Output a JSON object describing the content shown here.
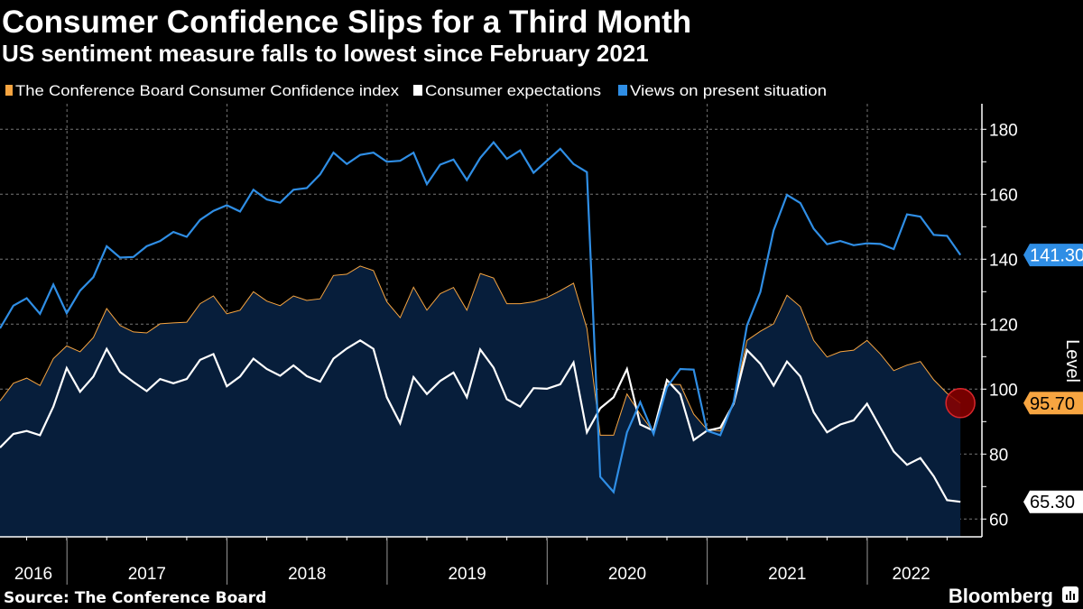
{
  "chart_data": {
    "type": "line",
    "title": "Consumer Confidence Slips for a Third Month",
    "subtitle": "US sentiment measure falls to lowest since February 2021",
    "ylabel": "Level",
    "xlabel": "",
    "ylim": [
      55,
      187
    ],
    "yticks": [
      60,
      80,
      100,
      120,
      140,
      160,
      180
    ],
    "grid": true,
    "legend_position": "top-left",
    "x_start": "2016-07",
    "x_end": "2022-07",
    "x_frequency": "monthly",
    "year_labels": [
      "2016",
      "2017",
      "2018",
      "2019",
      "2020",
      "2021",
      "2022"
    ],
    "series": [
      {
        "name": "The Conference Board Consumer Confidence index",
        "color": "#f7a541",
        "style": "area",
        "last_value_label": "95.70",
        "values": [
          96.4,
          101.8,
          103.4,
          101.1,
          109.4,
          113.3,
          111.5,
          115.9,
          124.8,
          119.6,
          117.6,
          117.3,
          120.1,
          120.4,
          120.6,
          126.3,
          128.7,
          123.2,
          124.3,
          130.0,
          127.1,
          125.7,
          128.7,
          127.3,
          127.8,
          135.0,
          135.4,
          137.9,
          136.5,
          126.9,
          122.0,
          131.4,
          124.3,
          129.4,
          131.3,
          124.3,
          135.6,
          134.2,
          126.3,
          126.3,
          126.9,
          128.2,
          130.3,
          132.6,
          118.7,
          85.8,
          85.8,
          98.5,
          92.3,
          86.7,
          101.5,
          101.4,
          92.3,
          87.6,
          87.1,
          95.5,
          115.0,
          117.8,
          120.1,
          128.9,
          125.4,
          115.0,
          109.9,
          111.5,
          112.0,
          115.0,
          110.8,
          105.7,
          107.4,
          108.5,
          102.9,
          98.7,
          95.7
        ]
      },
      {
        "name": "Consumer expectations",
        "color": "#ffffff",
        "style": "line",
        "last_value_label": "65.30",
        "values": [
          82.0,
          86.2,
          87.1,
          85.8,
          94.6,
          106.5,
          99.2,
          103.9,
          112.4,
          105.3,
          102.2,
          99.4,
          103.1,
          101.8,
          103.1,
          109.0,
          110.8,
          100.9,
          103.9,
          109.4,
          106.2,
          104.1,
          107.3,
          104.0,
          102.3,
          109.4,
          112.5,
          115.0,
          112.4,
          97.5,
          89.5,
          103.7,
          98.5,
          102.5,
          105.1,
          97.5,
          112.2,
          106.6,
          96.9,
          94.6,
          100.3,
          100.1,
          101.5,
          108.2,
          86.7,
          94.1,
          97.5,
          106.2,
          89.1,
          87.2,
          102.8,
          98.4,
          84.3,
          87.2,
          88.1,
          95.5,
          112.0,
          107.8,
          101.1,
          108.5,
          103.9,
          92.9,
          86.7,
          89.1,
          90.4,
          95.5,
          88.1,
          80.8,
          76.7,
          78.8,
          73.2,
          65.8,
          65.3
        ]
      },
      {
        "name": "Views on present situation",
        "color": "#2f8ee5",
        "style": "line",
        "last_value_label": "141.30",
        "values": [
          118.7,
          125.7,
          128.0,
          123.2,
          132.2,
          123.4,
          130.3,
          134.5,
          144.0,
          140.5,
          140.7,
          144.0,
          145.6,
          148.4,
          146.9,
          152.1,
          154.9,
          156.6,
          154.7,
          161.4,
          158.4,
          157.4,
          161.4,
          161.9,
          166.1,
          172.8,
          169.3,
          172.1,
          172.8,
          170.0,
          170.3,
          172.8,
          163.1,
          169.1,
          170.7,
          164.4,
          171.2,
          176.0,
          170.9,
          173.5,
          166.6,
          170.3,
          174.0,
          169.3,
          166.8,
          73.0,
          68.3,
          86.7,
          96.0,
          86.2,
          100.6,
          106.2,
          106.0,
          87.2,
          85.8,
          96.0,
          119.6,
          129.9,
          148.9,
          159.8,
          157.3,
          149.4,
          144.6,
          145.6,
          144.3,
          144.9,
          144.7,
          143.1,
          153.8,
          153.1,
          147.5,
          147.2,
          141.3
        ]
      }
    ],
    "area_fill_color": "#071e3b",
    "highlight_marker_color": "#8b0000"
  },
  "footer": {
    "source": "Source: The Conference Board",
    "brand": "Bloomberg"
  }
}
